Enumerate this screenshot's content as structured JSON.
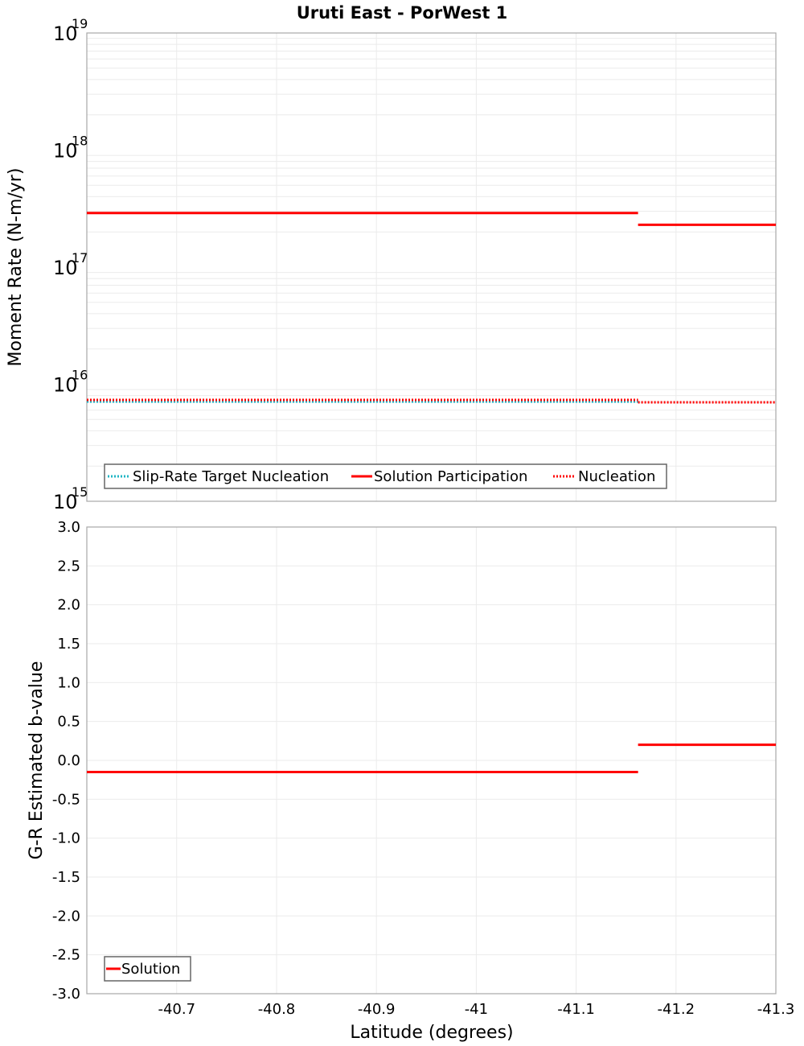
{
  "chart_data": [
    {
      "type": "line",
      "title": "Uruti East - PorWest 1",
      "xlabel": "",
      "ylabel": "Moment Rate (N-m/yr)",
      "yscale": "log",
      "ylim": [
        1000000000000000.0,
        1e+19
      ],
      "xlim": [
        -40.61,
        -41.3
      ],
      "y_ticks": [
        "10^15",
        "10^16",
        "10^17",
        "10^18",
        "10^19"
      ],
      "grid": true,
      "legend_position": "lower-left",
      "legend": [
        "Slip-Rate Target Nucleation",
        "Solution Participation",
        "Nucleation"
      ],
      "series": [
        {
          "name": "Slip-Rate Target Nucleation",
          "style": "dotted",
          "color": "#1fb5c4",
          "segments": [
            {
              "x": [
                -40.61,
                -41.162
              ],
              "y": 7100000000000000.0
            }
          ]
        },
        {
          "name": "Solution Participation",
          "style": "solid",
          "color": "#ff0000",
          "segments": [
            {
              "x": [
                -40.61,
                -41.162
              ],
              "y": 2.9e+17
            },
            {
              "x": [
                -41.162,
                -41.3
              ],
              "y": 2.3e+17
            }
          ]
        },
        {
          "name": "Nucleation",
          "style": "dotted",
          "color": "#ff0000",
          "segments": [
            {
              "x": [
                -40.61,
                -41.162
              ],
              "y": 7350000000000000.0
            },
            {
              "x": [
                -41.162,
                -41.3
              ],
              "y": 7000000000000000.0
            }
          ]
        }
      ]
    },
    {
      "type": "line",
      "title": "",
      "xlabel": "Latitude (degrees)",
      "ylabel": "G-R Estimated b-value",
      "ylim": [
        -3.0,
        3.0
      ],
      "xlim": [
        -40.61,
        -41.3
      ],
      "x_ticks": [
        "-40.7",
        "-40.8",
        "-40.9",
        "-41",
        "-41.1",
        "-41.2",
        "-41.3"
      ],
      "y_ticks": [
        "3.0",
        "2.5",
        "2.0",
        "1.5",
        "1.0",
        "0.5",
        "0.0",
        "-0.5",
        "-1.0",
        "-1.5",
        "-2.0",
        "-2.5",
        "-3.0"
      ],
      "grid": true,
      "legend_position": "lower-left",
      "legend": [
        "Solution"
      ],
      "series": [
        {
          "name": "Solution",
          "style": "solid",
          "color": "#ff0000",
          "segments": [
            {
              "x": [
                -40.61,
                -41.162
              ],
              "y": -0.15
            },
            {
              "x": [
                -41.162,
                -41.3
              ],
              "y": 0.2
            }
          ]
        }
      ]
    }
  ],
  "labels": {
    "title": "Uruti East - PorWest 1",
    "top_ylabel": "Moment Rate (N-m/yr)",
    "bottom_ylabel": "G-R Estimated b-value",
    "xlabel": "Latitude (degrees)",
    "legend_top": [
      "Slip-Rate Target Nucleation",
      "Solution Participation",
      "Nucleation"
    ],
    "legend_bottom": [
      "Solution"
    ]
  },
  "colors": {
    "red": "#ff0000",
    "cyan": "#1fb5c4",
    "grid": "#ebebeb",
    "frame": "#a8a8a8"
  }
}
